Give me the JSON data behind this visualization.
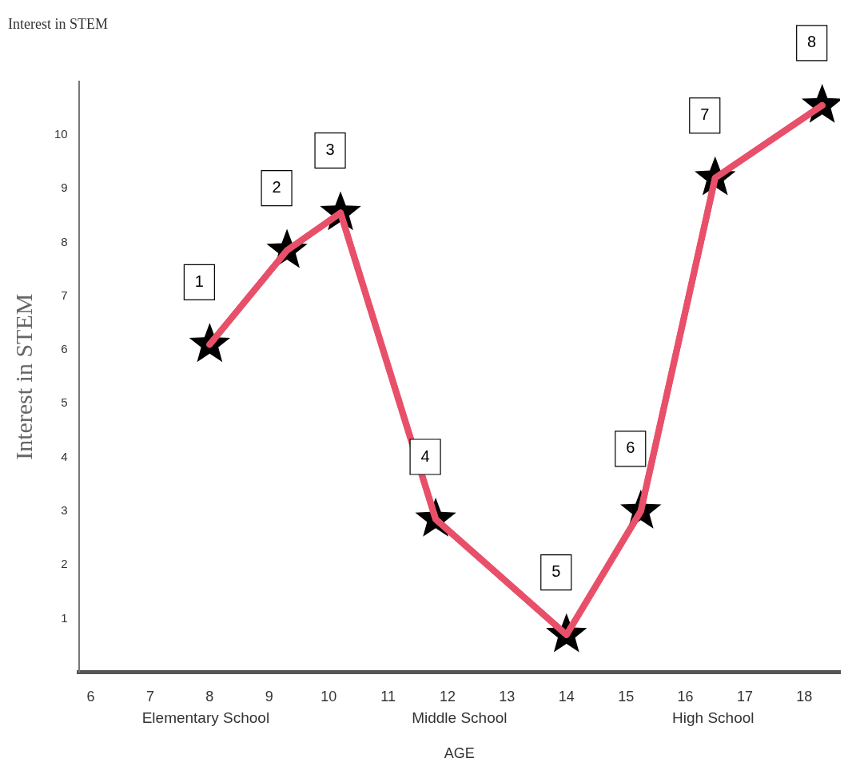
{
  "chart_data": {
    "type": "line",
    "title": "Interest in STEM",
    "ylabel": "Interest in STEM",
    "xlabel": "AGE",
    "x": [
      8,
      9.3,
      10.2,
      11.8,
      14,
      15.25,
      16.5,
      18.3
    ],
    "series": [
      {
        "marker": "none",
        "color": "#e8506a",
        "values": [
          6.1,
          7.85,
          8.55,
          2.85,
          0.7,
          3.0,
          9.2,
          10.55
        ]
      },
      {
        "type": "scatter",
        "color": "#000000",
        "values": [
          6.1,
          7.85,
          8.55,
          2.85,
          0.7,
          3.0,
          9.2,
          10.55
        ]
      }
    ],
    "xlim": [
      5.8,
      18.6
    ],
    "xticks": [
      6,
      7,
      8,
      9,
      10,
      11,
      12,
      13,
      14,
      15,
      16,
      17,
      18
    ],
    "ylim": [
      0,
      11
    ],
    "yticks": [
      1,
      2,
      3,
      4,
      5,
      6,
      7,
      8,
      9,
      10
    ],
    "grid": false,
    "legend": false,
    "marker": "star",
    "line_style": "solid",
    "annotations": [
      "1",
      "2",
      "3",
      "4",
      "5",
      "6",
      "7",
      "8",
      "Elementary School",
      "Middle School",
      "High School"
    ]
  }
}
